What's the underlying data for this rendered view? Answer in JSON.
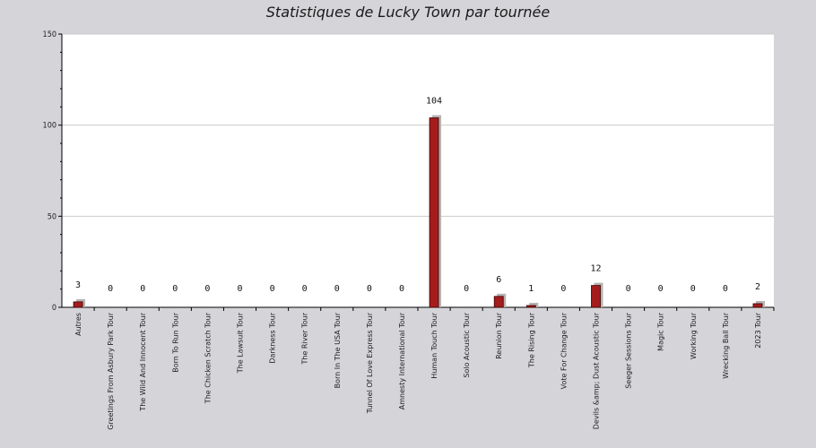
{
  "chart_data": {
    "type": "bar",
    "title": "Statistiques de Lucky Town par tournée",
    "xlabel": "",
    "ylabel": "",
    "ylim": [
      0,
      150
    ],
    "yticks": [
      0,
      50,
      100,
      150
    ],
    "grid": true,
    "categories": [
      "Autres",
      "Greetings From Asbury Park Tour",
      "The Wild And Innocent Tour",
      "Born To Run Tour",
      "The Chicken Scratch Tour",
      "The Lawsuit Tour",
      "Darkness Tour",
      "The River Tour",
      "Born In The USA Tour",
      "Tunnel Of Love Express Tour",
      "Amnesty International Tour",
      "Human Touch Tour",
      "Solo Acoustic Tour",
      "Reunion Tour",
      "The Rising Tour",
      "Vote For Change Tour",
      "Devils &amp; Dust Acoustic Tour",
      "Seeger Sessions Tour",
      "Magic Tour",
      "Working Tour",
      "Wrecking Ball Tour",
      "2023 Tour"
    ],
    "values": [
      3,
      0,
      0,
      0,
      0,
      0,
      0,
      0,
      0,
      0,
      0,
      104,
      0,
      6,
      1,
      0,
      12,
      0,
      0,
      0,
      0,
      2
    ],
    "colors": {
      "bar": "#a51c1c",
      "bar_border": "#3a0000",
      "shadow": "#b8b2b2",
      "plot_bg": "#ffffff",
      "page_bg": "#d5d4d8",
      "grid": "#cccccc"
    }
  }
}
